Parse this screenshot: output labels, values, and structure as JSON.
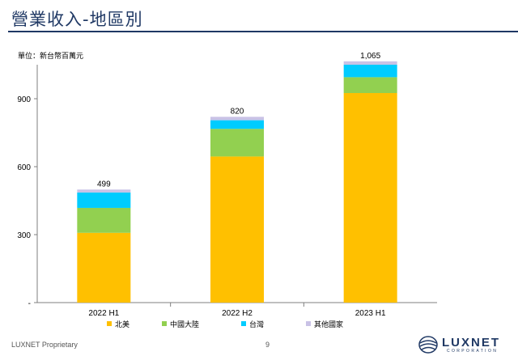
{
  "slide": {
    "title": "營業收入-地區別",
    "footer": "LUXNET Proprietary",
    "page_number": "9",
    "logo_text": "LUXNET",
    "logo_subtext": "CORPORATION"
  },
  "chart_data": {
    "type": "stacked-bar",
    "unit_label": "單位：新台幣百萬元",
    "categories": [
      "2022 H1",
      "2022 H2",
      "2023 H1"
    ],
    "series": [
      {
        "name": "北美",
        "color": "#ffc000",
        "values": [
          308,
          645,
          925
        ]
      },
      {
        "name": "中國大陸",
        "color": "#92d050",
        "values": [
          110,
          122,
          70
        ]
      },
      {
        "name": "台灣",
        "color": "#00ccff",
        "values": [
          68,
          38,
          55
        ]
      },
      {
        "name": "其他國家",
        "color": "#c9c2e6",
        "values": [
          13,
          15,
          15
        ]
      }
    ],
    "totals": [
      "499",
      "820",
      "1,065"
    ],
    "yticks": [
      0,
      300,
      600,
      900
    ],
    "ytick_labels": [
      "-",
      "300",
      "600",
      "900"
    ],
    "ylim": [
      0,
      1050
    ],
    "legend_position": "bottom"
  }
}
